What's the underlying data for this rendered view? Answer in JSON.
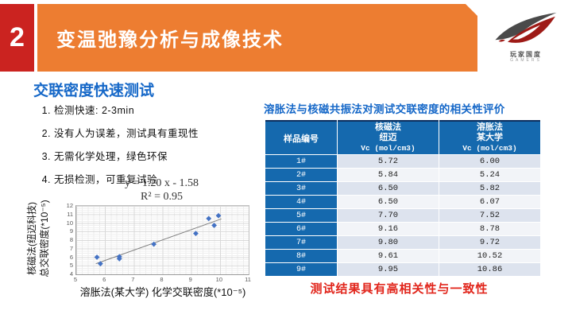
{
  "header": {
    "slide_number": "2",
    "title": "变温弛豫分析与成像技术"
  },
  "logo": {
    "text_cn": "玩家国度",
    "text_en": "GAMERS"
  },
  "left_panel": {
    "title": "交联密度快速测试",
    "items": [
      "检测快速: 2-3min",
      "没有人为误差，测试具有重现性",
      "无需化学处理，绿色环保",
      "无损检测，可重复试验"
    ]
  },
  "chart_data": {
    "type": "scatter",
    "equation": "y = 1.20 x - 1.58",
    "r_squared": "R² = 0.95",
    "xlabel": "溶胀法(某大学) 化学交联密度(*10⁻⁵)",
    "ylabel_lines": [
      "核磁法(纽迈科技)",
      "总交联密度(*10⁻⁵)"
    ],
    "xlim": [
      5,
      11
    ],
    "ylim": [
      4,
      12
    ],
    "xticks": [
      5,
      6,
      7,
      8,
      9,
      10,
      11
    ],
    "yticks": [
      4,
      5,
      6,
      7,
      8,
      9,
      10,
      11,
      12
    ],
    "points": [
      [
        5.72,
        6.0
      ],
      [
        5.84,
        5.24
      ],
      [
        6.5,
        5.82
      ],
      [
        6.5,
        6.07
      ],
      [
        7.7,
        7.52
      ],
      [
        9.16,
        8.78
      ],
      [
        9.8,
        9.72
      ],
      [
        9.61,
        10.52
      ],
      [
        9.95,
        10.86
      ]
    ],
    "trendline": {
      "slope": 1.2,
      "intercept": -1.58,
      "x_start": 5.68,
      "x_end": 10.05
    },
    "point_color": "#4472c4",
    "grid": true,
    "legend": false
  },
  "right_panel": {
    "title": "溶胀法与核磁共振法对测试交联密度的相关性评价",
    "table": {
      "col1_header": "样品编号",
      "col2_header_lines": [
        "核磁法",
        "纽迈",
        "Vc (mol/cm3)"
      ],
      "col3_header_lines": [
        "溶胀法",
        "某大学",
        "Vc (mol/cm3)"
      ],
      "rows": [
        [
          "1#",
          "5.72",
          "6.00"
        ],
        [
          "2#",
          "5.84",
          "5.24"
        ],
        [
          "3#",
          "6.50",
          "5.82"
        ],
        [
          "4#",
          "6.50",
          "6.07"
        ],
        [
          "5#",
          "7.70",
          "7.52"
        ],
        [
          "6#",
          "9.16",
          "8.78"
        ],
        [
          "7#",
          "9.80",
          "9.72"
        ],
        [
          "8#",
          "9.61",
          "10.52"
        ],
        [
          "9#",
          "9.95",
          "10.86"
        ]
      ]
    },
    "conclusion": "测试结果具有高相关性与一致性"
  },
  "colors": {
    "accent_red": "#cb2320",
    "accent_orange": "#ed7d31",
    "title_blue": "#1668c8",
    "table_header_blue": "#1569ae",
    "row_odd": "#dde3ee",
    "row_even": "#f2f4f8",
    "conclusion_red": "#e1251b"
  }
}
